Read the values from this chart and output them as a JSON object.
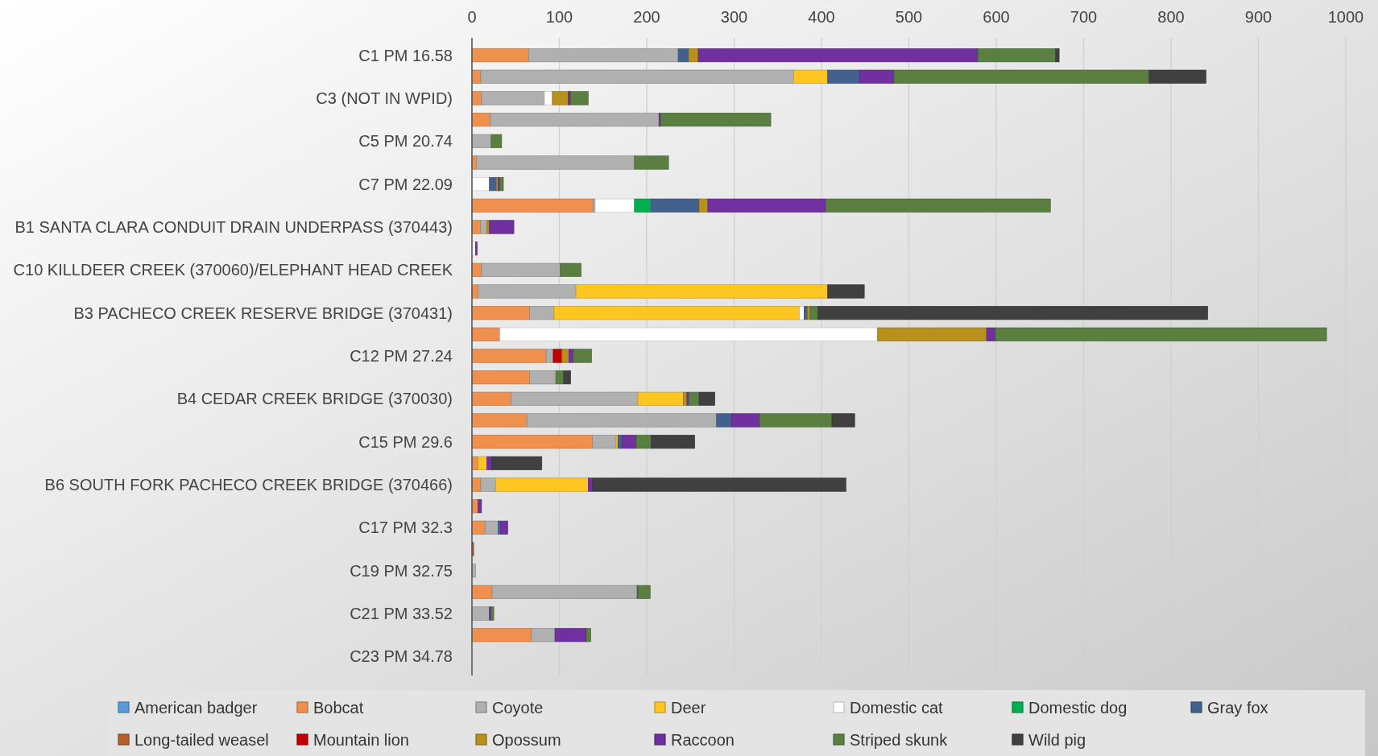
{
  "chart_data": {
    "type": "bar",
    "orientation": "horizontal",
    "stacked": true,
    "grid": "x",
    "legend": "bottom",
    "xlim": [
      0,
      1000
    ],
    "xticks": [
      0,
      100,
      200,
      300,
      400,
      500,
      600,
      700,
      800,
      900,
      1000
    ],
    "categories": [
      "C1 PM 16.58",
      null,
      "C3 (NOT IN WPID)",
      null,
      "C5 PM 20.74",
      null,
      "C7 PM 22.09",
      null,
      "B1 SANTA CLARA CONDUIT DRAIN UNDERPASS (370443)",
      null,
      "C10 KILLDEER CREEK (370060)/ELEPHANT HEAD CREEK",
      null,
      "B3 PACHECO CREEK RESERVE BRIDGE (370431)",
      null,
      "C12 PM 27.24",
      null,
      "B4 CEDAR CREEK BRIDGE (370030)",
      null,
      "C15 PM 29.6",
      null,
      "B6 SOUTH FORK PACHECO CREEK BRIDGE (370466)",
      null,
      "C17 PM 32.3",
      null,
      "C19 PM 32.75",
      null,
      "C21 PM 33.52",
      null,
      "C23 PM 34.78"
    ],
    "series": [
      {
        "name": "American badger",
        "color": "#5b9bd5",
        "values": [
          0,
          0,
          0,
          0,
          0,
          0,
          0,
          0,
          0,
          0,
          0,
          0,
          0,
          0,
          0,
          0,
          0,
          0,
          0,
          0,
          0,
          0,
          0,
          0,
          0,
          0,
          0,
          0,
          0
        ]
      },
      {
        "name": "Bobcat",
        "color": "#f0904f",
        "values": [
          65,
          10,
          11,
          21,
          0,
          5,
          0,
          139,
          10,
          0,
          11,
          7,
          66,
          32,
          85,
          66,
          45,
          63,
          138,
          7,
          10,
          7,
          15,
          0,
          0,
          23,
          0,
          68,
          0
        ]
      },
      {
        "name": "Coyote",
        "color": "#b0b0b0",
        "values": [
          171,
          358,
          72,
          193,
          22,
          181,
          0,
          2,
          7,
          null,
          90,
          112,
          28,
          0,
          8,
          30,
          145,
          217,
          27,
          0,
          17,
          0,
          15,
          0,
          4,
          166,
          20,
          27,
          0
        ]
      },
      {
        "name": "Deer",
        "color": "#ffc520",
        "values": [
          0,
          39,
          0,
          0,
          0,
          0,
          0,
          0,
          0,
          0,
          0,
          288,
          281,
          0,
          0,
          0,
          52,
          0,
          2,
          10,
          106,
          0,
          0,
          0,
          0,
          0,
          0,
          0,
          0
        ]
      },
      {
        "name": "Domestic cat",
        "color": "#ffffff",
        "values": [
          0,
          0,
          9,
          0,
          0,
          0,
          20,
          45,
          0,
          4,
          0,
          0,
          5,
          432,
          0,
          0,
          0,
          0,
          0,
          0,
          0,
          0,
          0,
          0,
          0,
          0,
          0,
          0,
          0
        ]
      },
      {
        "name": "Domestic dog",
        "color": "#00b050",
        "values": [
          0,
          0,
          0,
          0,
          0,
          0,
          0,
          19,
          0,
          0,
          0,
          0,
          0,
          0,
          0,
          0,
          0,
          0,
          0,
          0,
          0,
          0,
          0,
          0,
          0,
          0,
          0,
          0,
          0
        ]
      },
      {
        "name": "Gray fox",
        "color": "#44618e",
        "values": [
          12,
          37,
          0,
          0,
          0,
          0,
          8,
          55,
          0,
          0,
          0,
          0,
          4,
          0,
          0,
          0,
          0,
          17,
          5,
          0,
          0,
          0,
          3,
          0,
          0,
          1,
          0,
          0,
          0
        ]
      },
      {
        "name": "Long-tailed weasel",
        "color": "#b5602a",
        "values": [
          0,
          0,
          0,
          0,
          0,
          0,
          0,
          0,
          0,
          0,
          0,
          0,
          0,
          0,
          0,
          0,
          0,
          0,
          0,
          0,
          0,
          0,
          0,
          2,
          0,
          0,
          0,
          0,
          0
        ]
      },
      {
        "name": "Mountain lion",
        "color": "#c00000",
        "values": [
          0,
          0,
          0,
          0,
          0,
          0,
          0,
          0,
          0,
          0,
          0,
          0,
          0,
          0,
          10,
          0,
          0,
          0,
          0,
          0,
          0,
          0,
          0,
          0,
          0,
          0,
          0,
          0,
          0
        ]
      },
      {
        "name": "Opossum",
        "color": "#b8901c",
        "values": [
          11,
          0,
          18,
          0,
          0,
          0,
          2,
          10,
          3,
          0,
          0,
          0,
          3,
          125,
          8,
          0,
          4,
          0,
          0,
          0,
          0,
          0,
          0,
          0,
          0,
          0,
          0,
          0,
          0
        ]
      },
      {
        "name": "Raccoon",
        "color": "#7030a0",
        "values": [
          320,
          39,
          3,
          2,
          0,
          0,
          2,
          135,
          28,
          2,
          null,
          0,
          0,
          10,
          5,
          0,
          2,
          32,
          16,
          6,
          5,
          4,
          8,
          0,
          0,
          0,
          2,
          36,
          0
        ]
      },
      {
        "name": "Striped skunk",
        "color": "#5a7f41",
        "values": [
          89,
          292,
          20,
          126,
          12,
          39,
          4,
          257,
          0,
          0,
          24,
          0,
          9,
          379,
          21,
          9,
          12,
          83,
          17,
          0,
          0,
          0,
          0,
          0,
          0,
          14,
          3,
          5,
          0
        ]
      },
      {
        "name": "Wild pig",
        "color": "#404040",
        "values": [
          4,
          65,
          0,
          0,
          0,
          0,
          0,
          0,
          0,
          0,
          0,
          42,
          446,
          0,
          0,
          8,
          18,
          26,
          50,
          57,
          290,
          0,
          0,
          0,
          0,
          0,
          0,
          0,
          0
        ]
      }
    ]
  }
}
